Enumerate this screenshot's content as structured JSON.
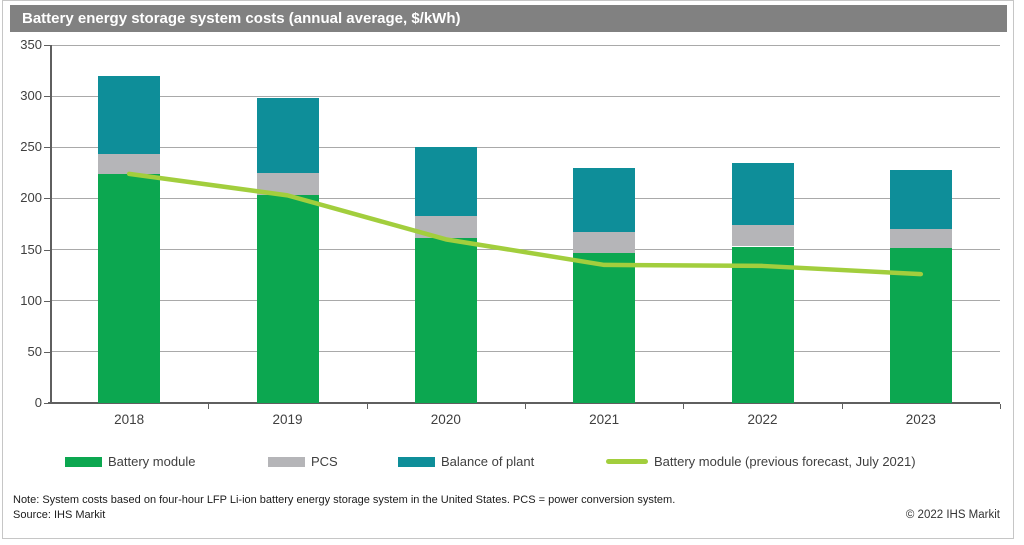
{
  "title": "Battery energy storage system costs (annual average, $/kWh)",
  "chart_data": {
    "type": "bar",
    "stacked": true,
    "title": "Battery energy storage system costs (annual average, $/kWh)",
    "categories": [
      "2018",
      "2019",
      "2020",
      "2021",
      "2022",
      "2023"
    ],
    "series": [
      {
        "name": "Battery module",
        "color": "#0ca750",
        "values": [
          224,
          203,
          161,
          147,
          153,
          152
        ]
      },
      {
        "name": "PCS",
        "color": "#b5b5b8",
        "values": [
          19,
          22,
          22,
          20,
          21,
          18
        ]
      },
      {
        "name": "Balance of plant",
        "color": "#0e8e99",
        "values": [
          77,
          73,
          67,
          63,
          61,
          58
        ]
      }
    ],
    "stack_totals": [
      320,
      298,
      250,
      230,
      235,
      228
    ],
    "line_series": {
      "name": "Battery module (previous forecast, July 2021)",
      "color": "#a2ce3d",
      "values": [
        224,
        203,
        160,
        135,
        134,
        126
      ]
    },
    "xlabel": "",
    "ylabel": "",
    "ylim": [
      0,
      350
    ],
    "ytick_step": 50,
    "grid": "horizontal",
    "legend_position": "bottom"
  },
  "legend": {
    "items": [
      {
        "label": "Battery module",
        "color": "#0ca750",
        "type": "bar"
      },
      {
        "label": "PCS",
        "color": "#b5b5b8",
        "type": "bar"
      },
      {
        "label": "Balance of plant",
        "color": "#0e8e99",
        "type": "bar"
      },
      {
        "label": "Battery module (previous forecast, July 2021)",
        "color": "#a2ce3d",
        "type": "line"
      }
    ]
  },
  "footer": {
    "note": "Note: System costs based on four-hour LFP Li-ion battery energy storage system in the United States. PCS = power conversion system.",
    "source": "Source: IHS Markit",
    "copyright": "© 2022 IHS Markit"
  },
  "colors": {
    "title_bar_bg": "#818181",
    "title_text": "#ffffff",
    "gridline": "#a9a9a9",
    "axis": "#5f5f5f",
    "label_text": "#3f3f3f",
    "frame_border": "#c6c6c6"
  }
}
